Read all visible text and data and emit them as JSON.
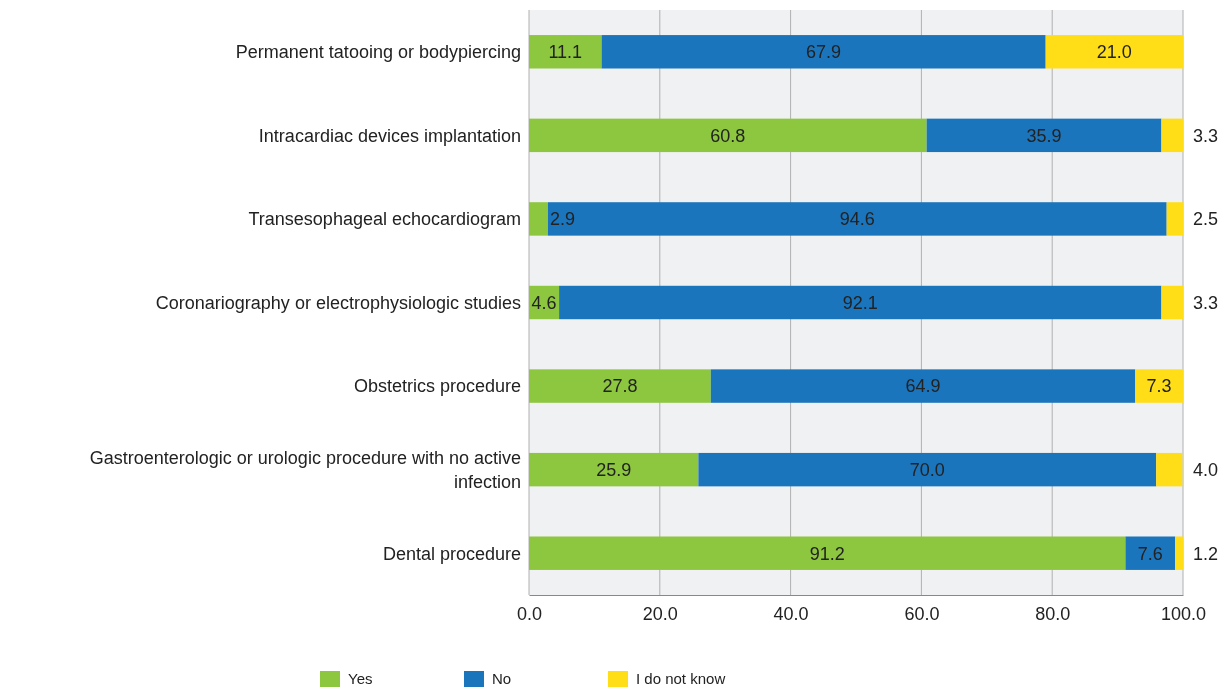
{
  "chart_data": {
    "type": "bar",
    "orientation": "horizontal",
    "stacked": true,
    "categories": [
      "Permanent tatooing or bodypiercing",
      "Intracardiac devices implantation",
      "Transesophageal echocardiogram",
      "Coronariography or electrophysiologic studies",
      "Obstetrics procedure",
      "Gastroenterologic or urologic procedure with no active infection",
      "Dental procedure"
    ],
    "series": [
      {
        "name": "Yes",
        "color": "#8dc63f",
        "values": [
          11.1,
          60.8,
          2.9,
          4.6,
          27.8,
          25.9,
          91.2
        ],
        "value_labels": [
          "11.1",
          "60.8",
          "2.9",
          "4.6",
          "27.8",
          "25.9",
          "91.2"
        ]
      },
      {
        "name": "No",
        "color": "#1b75bc",
        "values": [
          67.9,
          35.9,
          94.6,
          92.1,
          64.9,
          70.0,
          7.6
        ],
        "value_labels": [
          "67.9",
          "35.9",
          "94.6",
          "92.1",
          "64.9",
          "70.0",
          "7.6"
        ]
      },
      {
        "name": "I do not know",
        "color": "#ffde17",
        "values": [
          21.0,
          3.3,
          2.5,
          3.3,
          7.3,
          4.0,
          1.2
        ],
        "value_labels": [
          "21.0",
          "3.3",
          "2.5",
          "3.3",
          "7.3",
          "4.0",
          "1.2"
        ]
      }
    ],
    "xlim": [
      0,
      100
    ],
    "xticks": [
      {
        "value": 0,
        "label": "0.0"
      },
      {
        "value": 20,
        "label": "20.0"
      },
      {
        "value": 40,
        "label": "40.0"
      },
      {
        "value": 60,
        "label": "60.0"
      },
      {
        "value": 80,
        "label": "80.0"
      },
      {
        "value": 100,
        "label": "100.0"
      }
    ],
    "grid": "x",
    "legend": "bottom"
  }
}
